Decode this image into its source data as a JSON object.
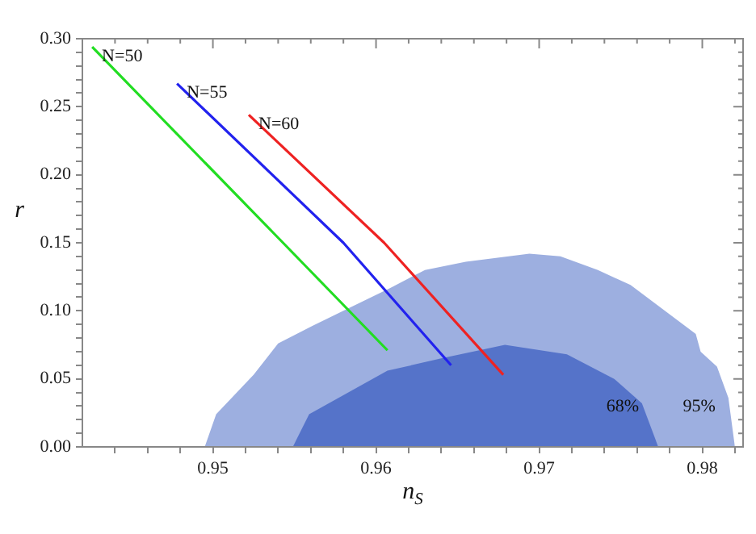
{
  "chart_data": {
    "type": "line",
    "xlabel": "n$_{S}$",
    "ylabel": "r",
    "xlim": [
      0.942,
      0.9825
    ],
    "ylim": [
      0,
      0.3
    ],
    "xticks": [
      {
        "value": 0.944,
        "label": null
      },
      {
        "value": 0.946,
        "label": null
      },
      {
        "value": 0.948,
        "label": null
      },
      0.95,
      {
        "value": 0.952,
        "label": null
      },
      {
        "value": 0.954,
        "label": null
      },
      {
        "value": 0.956,
        "label": null
      },
      {
        "value": 0.958,
        "label": null
      },
      0.96,
      {
        "value": 0.962,
        "label": null
      },
      {
        "value": 0.964,
        "label": null
      },
      {
        "value": 0.966,
        "label": null
      },
      {
        "value": 0.968,
        "label": null
      },
      0.97,
      {
        "value": 0.972,
        "label": null
      },
      {
        "value": 0.974,
        "label": null
      },
      {
        "value": 0.976,
        "label": null
      },
      {
        "value": 0.978,
        "label": null
      },
      0.98,
      {
        "value": 0.982,
        "label": null
      }
    ],
    "yticks": [
      {
        "value": 0,
        "label": "0.00"
      },
      {
        "value": 0.01,
        "label": null
      },
      {
        "value": 0.02,
        "label": null
      },
      {
        "value": 0.03,
        "label": null
      },
      {
        "value": 0.04,
        "label": null
      },
      {
        "value": 0.05,
        "label": "0.05"
      },
      {
        "value": 0.06,
        "label": null
      },
      {
        "value": 0.07,
        "label": null
      },
      {
        "value": 0.08,
        "label": null
      },
      {
        "value": 0.09,
        "label": null
      },
      {
        "value": 0.1,
        "label": "0.10"
      },
      {
        "value": 0.11,
        "label": null
      },
      {
        "value": 0.12,
        "label": null
      },
      {
        "value": 0.13,
        "label": null
      },
      {
        "value": 0.14,
        "label": null
      },
      {
        "value": 0.15,
        "label": "0.15"
      },
      {
        "value": 0.16,
        "label": null
      },
      {
        "value": 0.17,
        "label": null
      },
      {
        "value": 0.18,
        "label": null
      },
      {
        "value": 0.19,
        "label": null
      },
      {
        "value": 0.2,
        "label": "0.20"
      },
      {
        "value": 0.21,
        "label": null
      },
      {
        "value": 0.22,
        "label": null
      },
      {
        "value": 0.23,
        "label": null
      },
      {
        "value": 0.24,
        "label": null
      },
      {
        "value": 0.25,
        "label": "0.25"
      },
      {
        "value": 0.26,
        "label": null
      },
      {
        "value": 0.27,
        "label": null
      },
      {
        "value": 0.28,
        "label": null
      },
      {
        "value": 0.29,
        "label": null
      },
      {
        "value": 0.3,
        "label": "0.30"
      }
    ],
    "grid": false,
    "legend": false,
    "series": [
      {
        "type": "area",
        "name": "95%",
        "color": "#9dafe0",
        "x": [
          0.9495,
          0.9502,
          0.9525,
          0.954,
          0.9561,
          0.958,
          0.9609,
          0.963,
          0.9655,
          0.9694,
          0.9713,
          0.9736,
          0.9756,
          0.9796,
          0.9799,
          0.9809,
          0.9816,
          0.982
        ],
        "values": [
          0,
          0.024,
          0.053,
          0.076,
          0.089,
          0.1,
          0.117,
          0.13,
          0.136,
          0.142,
          0.14,
          0.13,
          0.119,
          0.083,
          0.07,
          0.059,
          0.036,
          0
        ]
      },
      {
        "type": "area",
        "name": "68%",
        "color": "#5573c9",
        "x": [
          0.9549,
          0.9559,
          0.9607,
          0.964,
          0.9679,
          0.9717,
          0.9746,
          0.9763,
          0.9773
        ],
        "values": [
          0,
          0.024,
          0.056,
          0.065,
          0.075,
          0.068,
          0.05,
          0.032,
          0
        ]
      },
      {
        "type": "line",
        "name": "N=50",
        "color": "#22dd22",
        "x": [
          0.9426,
          0.9543,
          0.9607
        ],
        "values": [
          0.294,
          0.15,
          0.071
        ]
      },
      {
        "type": "line",
        "name": "N=55",
        "color": "#2222ee",
        "x": [
          0.9478,
          0.958,
          0.9646
        ],
        "values": [
          0.267,
          0.15,
          0.06
        ]
      },
      {
        "type": "line",
        "name": "N=60",
        "color": "#ee2222",
        "x": [
          0.9522,
          0.9605,
          0.9678
        ],
        "values": [
          0.244,
          0.15,
          0.053
        ]
      }
    ]
  }
}
